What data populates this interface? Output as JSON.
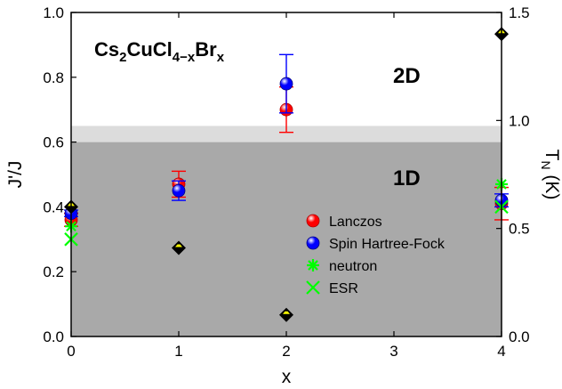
{
  "chart_data": {
    "type": "scatter",
    "title": {
      "main": "Cs",
      "sub1": "2",
      "mid": "CuCl",
      "sub2": "4−x",
      "tail": "Br",
      "sub3": "x"
    },
    "xlabel": "x",
    "ylabel_left": "J'/J",
    "ylabel_right": {
      "main": "T",
      "sub": "N",
      "unit": " (K)"
    },
    "xlim": [
      0,
      4
    ],
    "ylim_left": [
      0,
      1.0
    ],
    "ylim_right": [
      0,
      1.5
    ],
    "x_ticks": [
      "0",
      "1",
      "2",
      "3",
      "4"
    ],
    "y_ticks_left": [
      "0.0",
      "0.2",
      "0.4",
      "0.6",
      "0.8",
      "1.0"
    ],
    "y_ticks_right": [
      "0.0",
      "0.5",
      "1.0",
      "1.5"
    ],
    "regions": [
      {
        "label": "1D",
        "y0": 0,
        "y1": 0.6,
        "color": "#a9a9a9"
      },
      {
        "label": "",
        "y0": 0.6,
        "y1": 0.65,
        "color": "#dcdcdc"
      },
      {
        "label": "2D",
        "y0": 0.65,
        "y1": 1.0,
        "color": "#ffffff"
      }
    ],
    "series": [
      {
        "name": "Lanczos",
        "marker": "circle",
        "color": "#ff0000",
        "points": [
          {
            "x": 0,
            "y": 0.36,
            "err": 0.02
          },
          {
            "x": 1,
            "y": 0.47,
            "err": 0.04
          },
          {
            "x": 2,
            "y": 0.7,
            "err": 0.07
          },
          {
            "x": 4,
            "y": 0.41,
            "err": 0.05
          }
        ]
      },
      {
        "name": "Spin Hartree-Fock",
        "marker": "circle",
        "color": "#0000ff",
        "points": [
          {
            "x": 0,
            "y": 0.38,
            "err": 0.01
          },
          {
            "x": 1,
            "y": 0.45,
            "err": 0.03
          },
          {
            "x": 2,
            "y": 0.78,
            "err": 0.09
          },
          {
            "x": 4,
            "y": 0.42,
            "err": 0.02
          }
        ]
      },
      {
        "name": "neutron",
        "marker": "asterisk",
        "color": "#00ff00",
        "points": [
          {
            "x": 0,
            "y": 0.34
          },
          {
            "x": 4,
            "y": 0.47
          }
        ]
      },
      {
        "name": "ESR",
        "marker": "x",
        "color": "#00ff00",
        "points": [
          {
            "x": 0,
            "y": 0.3
          },
          {
            "x": 4,
            "y": 0.4
          }
        ]
      },
      {
        "name": "",
        "axis": "right",
        "marker": "diamond",
        "color": "#000000",
        "fill_top": "#ffff00",
        "points": [
          {
            "x": 0,
            "y": 0.6
          },
          {
            "x": 1,
            "y": 0.41
          },
          {
            "x": 2,
            "y": 0.1
          },
          {
            "x": 4,
            "y": 1.4
          }
        ]
      }
    ],
    "legend": {
      "placement": "lower-right",
      "entries": [
        "Lanczos",
        "Spin Hartree-Fock",
        "neutron",
        "ESR"
      ]
    }
  }
}
